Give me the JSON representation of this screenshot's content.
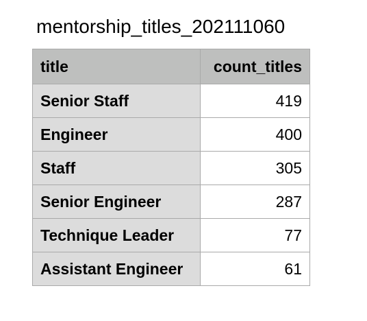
{
  "title": "mentorship_titles_202111060",
  "table": {
    "columns": [
      "title",
      "count_titles"
    ],
    "rows": [
      {
        "title": "Senior Staff",
        "count_titles": "419"
      },
      {
        "title": "Engineer",
        "count_titles": "400"
      },
      {
        "title": "Staff",
        "count_titles": "305"
      },
      {
        "title": "Senior Engineer",
        "count_titles": "287"
      },
      {
        "title": "Technique Leader",
        "count_titles": "77"
      },
      {
        "title": "Assistant Engineer",
        "count_titles": "61"
      }
    ]
  }
}
